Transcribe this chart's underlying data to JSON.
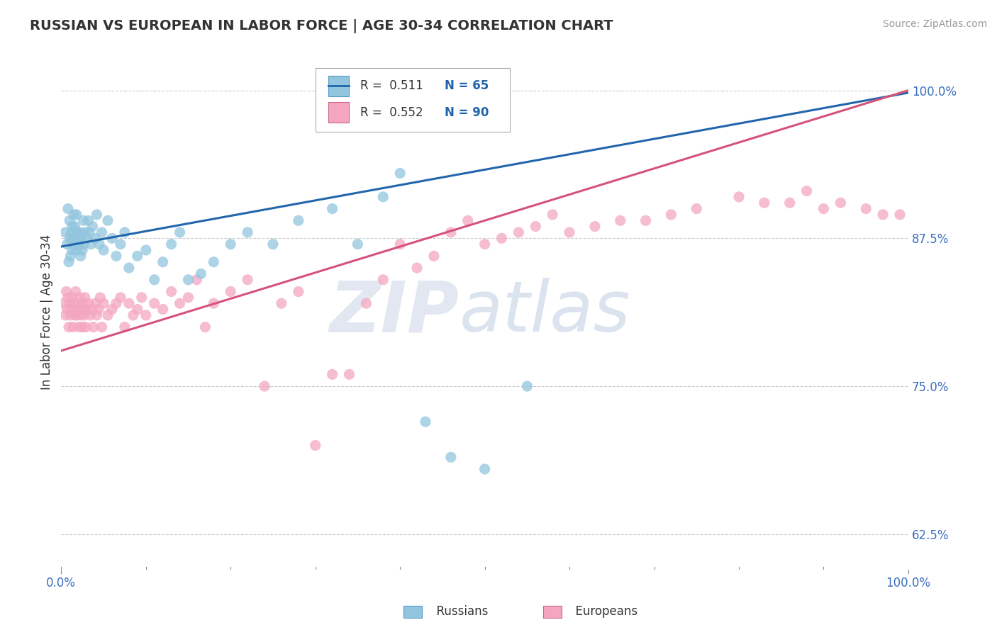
{
  "title": "RUSSIAN VS EUROPEAN IN LABOR FORCE | AGE 30-34 CORRELATION CHART",
  "source": "Source: ZipAtlas.com",
  "ylabel": "In Labor Force | Age 30-34",
  "xlim": [
    0.0,
    1.0
  ],
  "ylim": [
    0.595,
    1.03
  ],
  "ytick_labels": [
    "62.5%",
    "75.0%",
    "87.5%",
    "100.0%"
  ],
  "ytick_values": [
    0.625,
    0.75,
    0.875,
    1.0
  ],
  "xtick_labels": [
    "0.0%",
    "100.0%"
  ],
  "xtick_values": [
    0.0,
    1.0
  ],
  "russian_R": 0.511,
  "russian_N": 65,
  "european_R": 0.552,
  "european_N": 90,
  "russian_color": "#92c5de",
  "european_color": "#f4a6c0",
  "russian_line_color": "#2166ac",
  "european_line_color": "#d6527a",
  "background_color": "#ffffff",
  "watermark_zip": "ZIP",
  "watermark_atlas": "atlas",
  "russians_x": [
    0.005,
    0.007,
    0.008,
    0.009,
    0.01,
    0.01,
    0.011,
    0.012,
    0.013,
    0.013,
    0.014,
    0.015,
    0.015,
    0.016,
    0.016,
    0.017,
    0.018,
    0.018,
    0.019,
    0.02,
    0.021,
    0.022,
    0.023,
    0.024,
    0.025,
    0.026,
    0.027,
    0.028,
    0.03,
    0.032,
    0.033,
    0.035,
    0.037,
    0.04,
    0.042,
    0.045,
    0.048,
    0.05,
    0.055,
    0.06,
    0.065,
    0.07,
    0.075,
    0.08,
    0.09,
    0.1,
    0.11,
    0.12,
    0.13,
    0.14,
    0.15,
    0.165,
    0.18,
    0.2,
    0.22,
    0.25,
    0.28,
    0.32,
    0.35,
    0.38,
    0.4,
    0.43,
    0.46,
    0.5,
    0.55
  ],
  "russians_y": [
    0.88,
    0.87,
    0.9,
    0.855,
    0.875,
    0.89,
    0.86,
    0.88,
    0.865,
    0.885,
    0.875,
    0.87,
    0.895,
    0.875,
    0.885,
    0.87,
    0.865,
    0.895,
    0.88,
    0.875,
    0.87,
    0.88,
    0.86,
    0.875,
    0.865,
    0.89,
    0.87,
    0.88,
    0.875,
    0.89,
    0.88,
    0.87,
    0.885,
    0.875,
    0.895,
    0.87,
    0.88,
    0.865,
    0.89,
    0.875,
    0.86,
    0.87,
    0.88,
    0.85,
    0.86,
    0.865,
    0.84,
    0.855,
    0.87,
    0.88,
    0.84,
    0.845,
    0.855,
    0.87,
    0.88,
    0.87,
    0.89,
    0.9,
    0.87,
    0.91,
    0.93,
    0.72,
    0.69,
    0.68,
    0.75
  ],
  "europeans_x": [
    0.003,
    0.005,
    0.006,
    0.007,
    0.008,
    0.009,
    0.01,
    0.011,
    0.012,
    0.013,
    0.014,
    0.015,
    0.016,
    0.017,
    0.018,
    0.019,
    0.02,
    0.021,
    0.022,
    0.023,
    0.024,
    0.025,
    0.026,
    0.027,
    0.028,
    0.029,
    0.03,
    0.032,
    0.034,
    0.036,
    0.038,
    0.04,
    0.042,
    0.044,
    0.046,
    0.048,
    0.05,
    0.055,
    0.06,
    0.065,
    0.07,
    0.075,
    0.08,
    0.085,
    0.09,
    0.095,
    0.1,
    0.11,
    0.12,
    0.13,
    0.14,
    0.15,
    0.16,
    0.17,
    0.18,
    0.2,
    0.22,
    0.24,
    0.26,
    0.28,
    0.3,
    0.32,
    0.34,
    0.36,
    0.38,
    0.4,
    0.42,
    0.44,
    0.46,
    0.48,
    0.5,
    0.52,
    0.54,
    0.56,
    0.58,
    0.6,
    0.63,
    0.66,
    0.69,
    0.72,
    0.75,
    0.8,
    0.83,
    0.86,
    0.88,
    0.9,
    0.92,
    0.95,
    0.97,
    0.99
  ],
  "europeans_y": [
    0.82,
    0.81,
    0.83,
    0.815,
    0.825,
    0.8,
    0.82,
    0.81,
    0.815,
    0.825,
    0.8,
    0.82,
    0.81,
    0.83,
    0.815,
    0.81,
    0.82,
    0.8,
    0.825,
    0.81,
    0.815,
    0.8,
    0.82,
    0.81,
    0.825,
    0.8,
    0.815,
    0.82,
    0.81,
    0.815,
    0.8,
    0.82,
    0.81,
    0.815,
    0.825,
    0.8,
    0.82,
    0.81,
    0.815,
    0.82,
    0.825,
    0.8,
    0.82,
    0.81,
    0.815,
    0.825,
    0.81,
    0.82,
    0.815,
    0.83,
    0.82,
    0.825,
    0.84,
    0.8,
    0.82,
    0.83,
    0.84,
    0.75,
    0.82,
    0.83,
    0.7,
    0.76,
    0.76,
    0.82,
    0.84,
    0.87,
    0.85,
    0.86,
    0.88,
    0.89,
    0.87,
    0.875,
    0.88,
    0.885,
    0.895,
    0.88,
    0.885,
    0.89,
    0.89,
    0.895,
    0.9,
    0.91,
    0.905,
    0.905,
    0.915,
    0.9,
    0.905,
    0.9,
    0.895,
    0.895
  ]
}
